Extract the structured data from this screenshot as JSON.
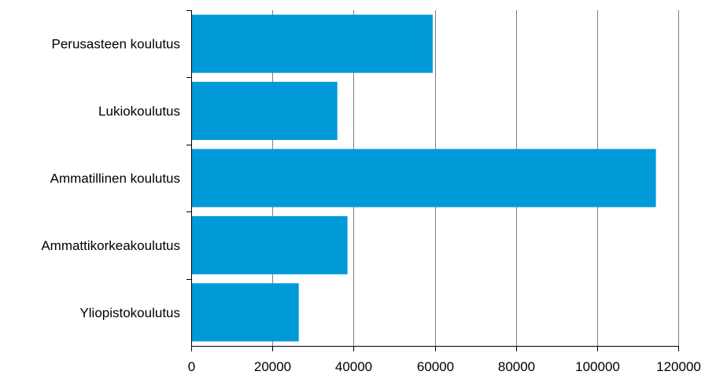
{
  "chart_data": {
    "type": "bar",
    "orientation": "horizontal",
    "categories": [
      "Perusasteen koulutus",
      "Lukiokoulutus",
      "Ammatillinen koulutus",
      "Ammattikorkeakoulutus",
      "Yliopistokoulutus"
    ],
    "values": [
      59500,
      36000,
      114500,
      38500,
      26500
    ],
    "xlim": [
      0,
      120000
    ],
    "xticks": [
      0,
      20000,
      40000,
      60000,
      80000,
      100000,
      120000
    ],
    "xtick_labels": [
      "0",
      "20000",
      "40000",
      "60000",
      "80000",
      "100000",
      "120000"
    ],
    "grid": "vertical",
    "legend": "none",
    "colors": {
      "bar": "#009ad9",
      "grid": "#808080",
      "axis": "#000000",
      "background": "#ffffff"
    }
  }
}
